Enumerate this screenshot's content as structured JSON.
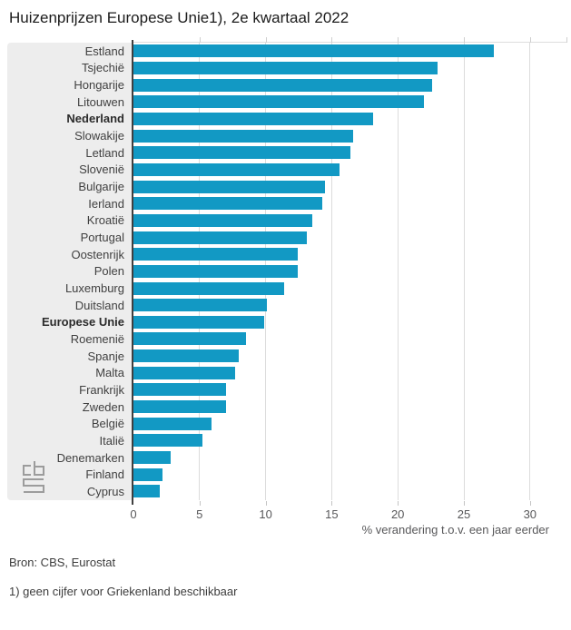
{
  "title": "Huizenprijzen Europese Unie1), 2e kwartaal 2022",
  "chart_data": {
    "type": "bar",
    "orientation": "horizontal",
    "title": "Huizenprijzen Europese Unie1), 2e kwartaal 2022",
    "xlabel": "% verandering t.o.v. een jaar eerder",
    "xlim": [
      0,
      32.8
    ],
    "xticks": [
      0,
      5,
      10,
      15,
      20,
      25,
      30
    ],
    "grid": true,
    "bar_color": "#1299c4",
    "bold_categories": [
      "Nederland",
      "Europese Unie"
    ],
    "categories": [
      "Estland",
      "Tsjechië",
      "Hongarije",
      "Litouwen",
      "Nederland",
      "Slowakije",
      "Letland",
      "Slovenië",
      "Bulgarije",
      "Ierland",
      "Kroatië",
      "Portugal",
      "Oostenrijk",
      "Polen",
      "Luxemburg",
      "Duitsland",
      "Europese Unie",
      "Roemenië",
      "Spanje",
      "Malta",
      "Frankrijk",
      "Zweden",
      "België",
      "Italië",
      "Denemarken",
      "Finland",
      "Cyprus"
    ],
    "values": [
      27.3,
      23.0,
      22.6,
      22.0,
      18.1,
      16.6,
      16.4,
      15.6,
      14.5,
      14.3,
      13.5,
      13.1,
      12.4,
      12.4,
      11.4,
      10.1,
      9.9,
      8.5,
      8.0,
      7.7,
      7.0,
      7.0,
      5.9,
      5.2,
      2.8,
      2.2,
      2.0
    ]
  },
  "axis": {
    "tick_labels": [
      "0",
      "5",
      "10",
      "15",
      "20",
      "25",
      "30"
    ],
    "title": "% verandering t.o.v. een jaar eerder"
  },
  "footer": {
    "source": "Bron: CBS, Eurostat",
    "footnote": "1) geen cijfer voor Griekenland beschikbaar"
  },
  "logo": {
    "name": "CBS"
  },
  "colors": {
    "bar": "#1299c4",
    "panel": "#ededed",
    "gridline": "#dcdcdc",
    "axis_line": "#3f3f3f",
    "label_text": "#404040",
    "tick_text": "#58585a"
  }
}
